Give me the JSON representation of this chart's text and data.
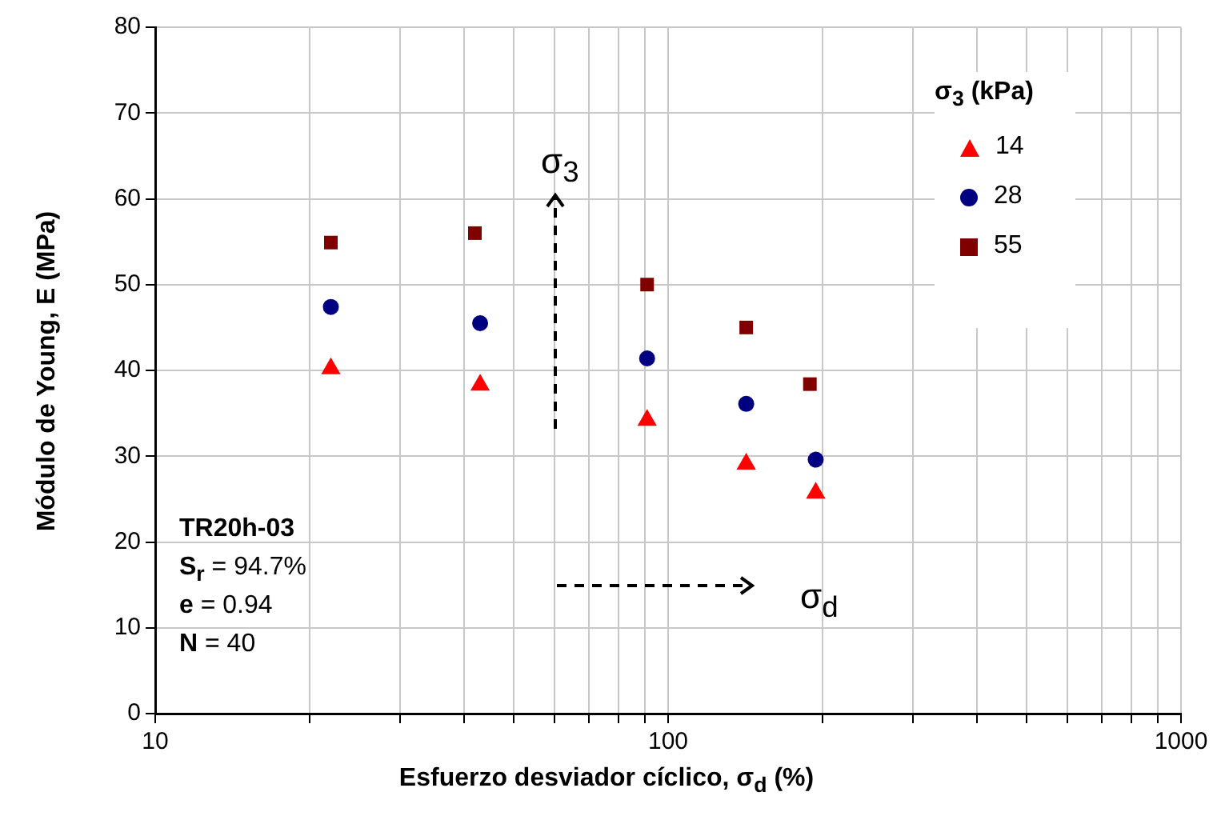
{
  "chart_data": {
    "type": "scatter",
    "xlabel": "Esfuerzo desviador cíclico, σ$_{d}$ (%)",
    "ylabel": "Módulo de Young, E (MPa)",
    "legend_title": "σ$_{3}$ (kPa)",
    "log": "x",
    "xlim": [
      10,
      1000
    ],
    "ylim": [
      0,
      80
    ],
    "xticks": [
      10,
      {
        "value": 20,
        "label": null
      },
      {
        "value": 30,
        "label": null
      },
      {
        "value": 40,
        "label": null
      },
      {
        "value": 50,
        "label": null
      },
      {
        "value": 60,
        "label": null
      },
      {
        "value": 70,
        "label": null
      },
      {
        "value": 80,
        "label": null
      },
      {
        "value": 90,
        "label": null
      },
      100,
      {
        "value": 200,
        "label": null
      },
      {
        "value": 300,
        "label": null
      },
      {
        "value": 400,
        "label": null
      },
      {
        "value": 500,
        "label": null
      },
      {
        "value": 600,
        "label": null
      },
      {
        "value": 700,
        "label": null
      },
      {
        "value": 800,
        "label": null
      },
      {
        "value": 900,
        "label": null
      },
      1000
    ],
    "yticks": [
      0,
      10,
      20,
      30,
      40,
      50,
      60,
      70,
      80
    ],
    "grid": true,
    "legend": "top right",
    "series": [
      {
        "name": "14",
        "color": "#ff0000",
        "marker": "triangle",
        "x": [
          22,
          43,
          91,
          142,
          194
        ],
        "values": [
          40.2,
          38.3,
          34.2,
          29.1,
          25.7
        ]
      },
      {
        "name": "28",
        "color": "#000080",
        "marker": "circle",
        "x": [
          22,
          43,
          91,
          142,
          194
        ],
        "values": [
          47.4,
          45.5,
          41.4,
          36.1,
          29.6
        ]
      },
      {
        "name": "55",
        "color": "#800000",
        "marker": "square",
        "x": [
          22,
          42,
          91,
          142,
          189
        ],
        "values": [
          54.9,
          56,
          50,
          45,
          38.4
        ]
      }
    ],
    "annotations": [
      "σ$_{3}$",
      "σ$_{d}$",
      "TR20h-03",
      "S$_{r}$ = 94.7%",
      "e = 0.94",
      "N = 40"
    ]
  }
}
